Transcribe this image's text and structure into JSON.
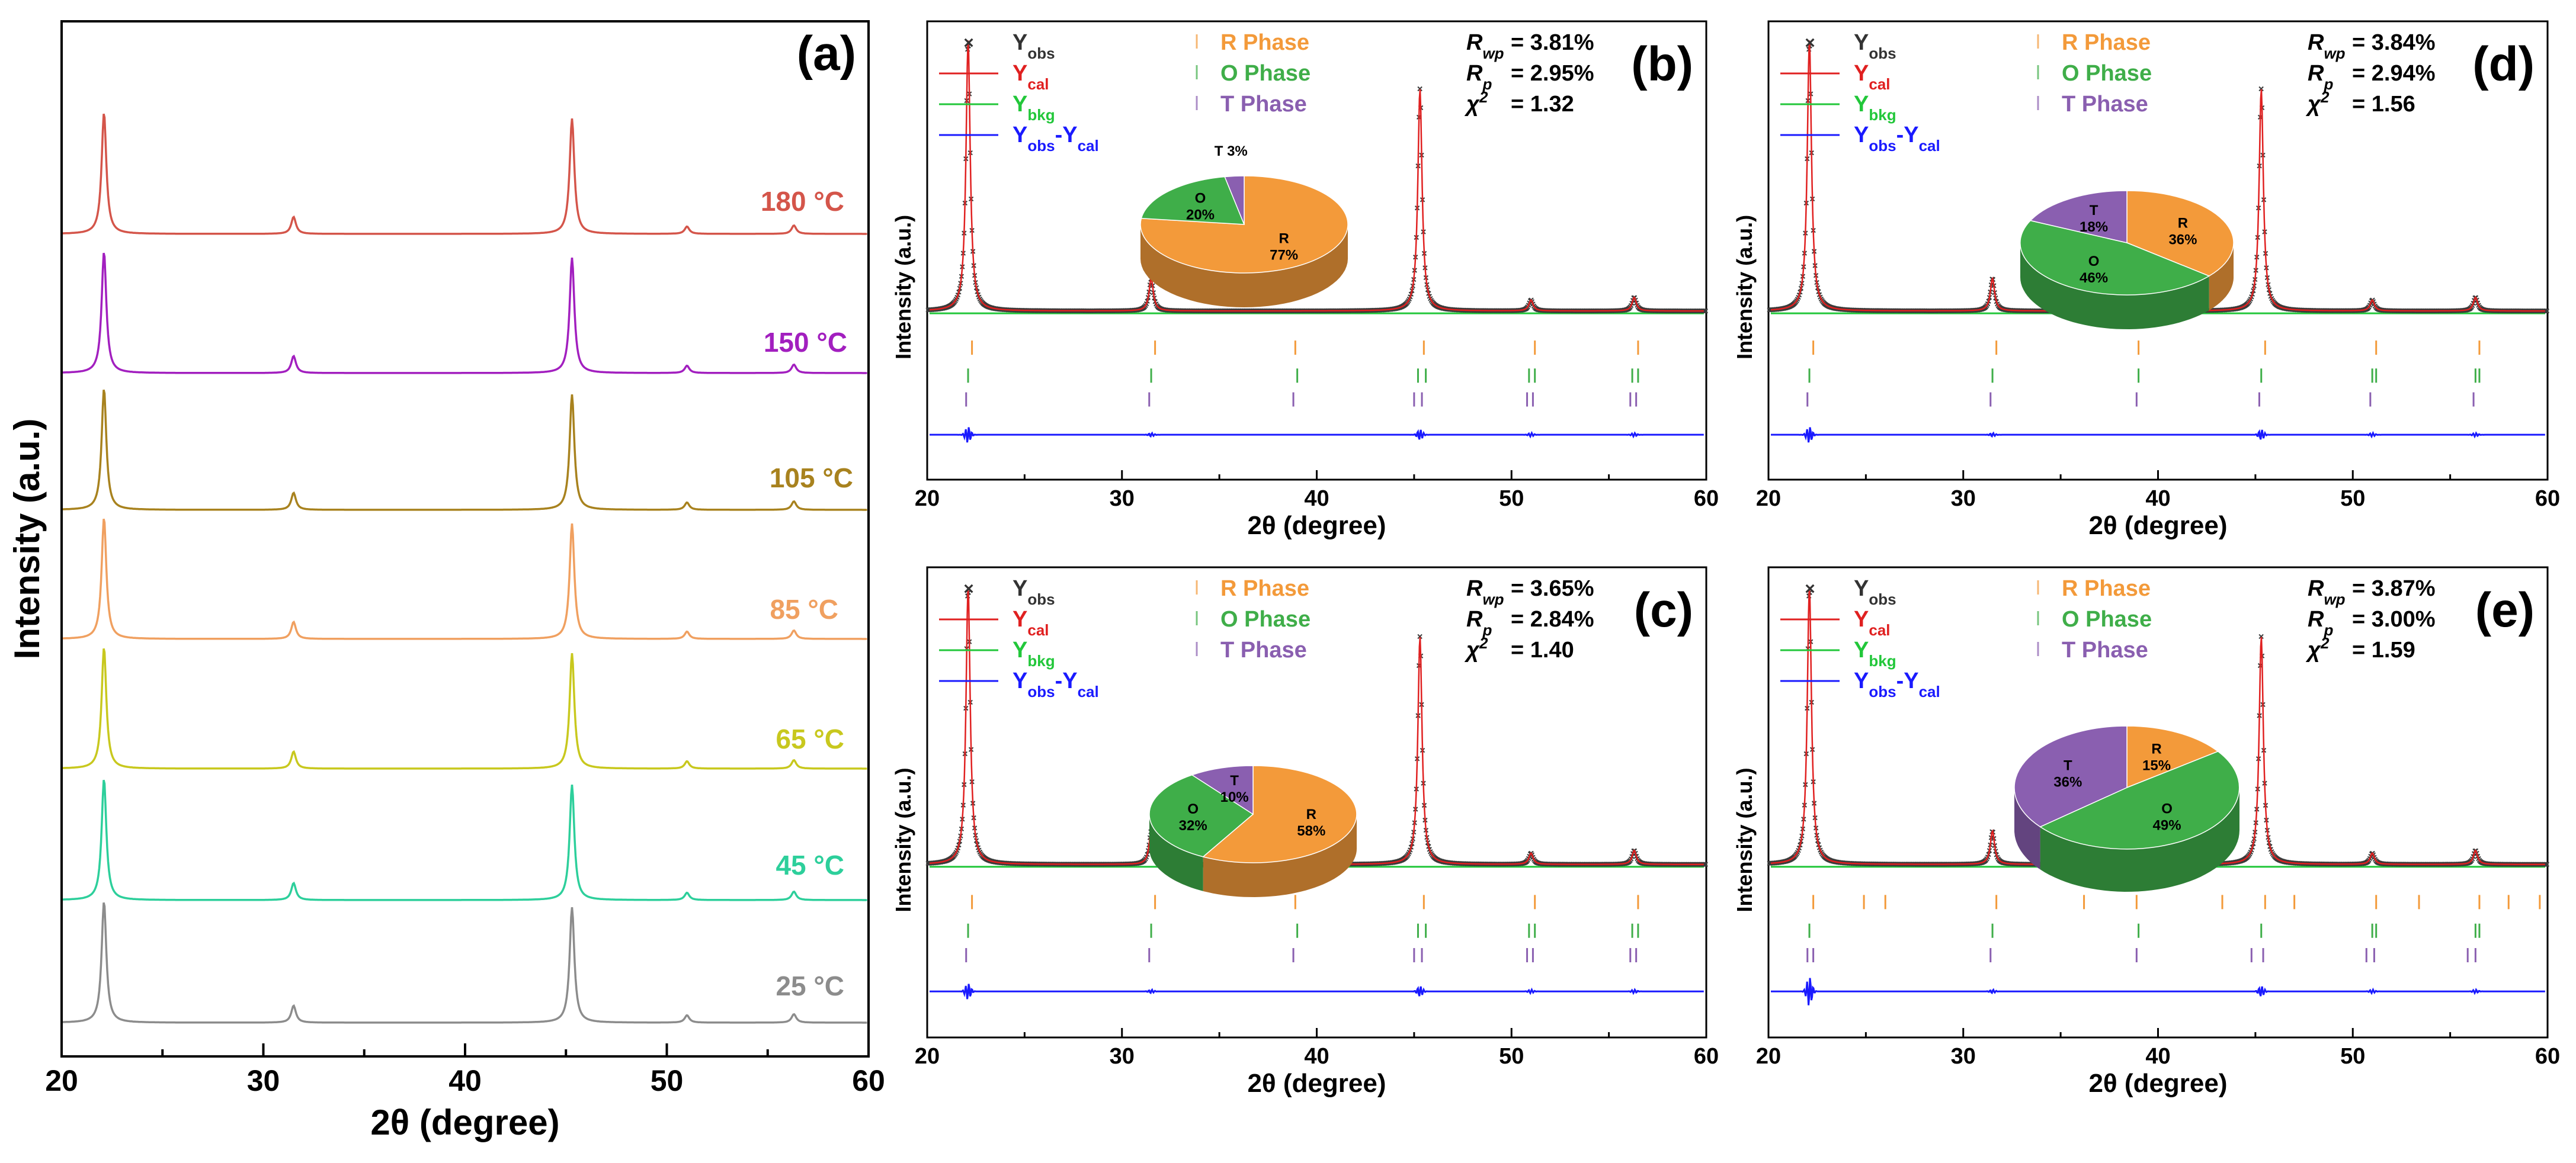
{
  "chart_data": [
    {
      "id": "a",
      "type": "line",
      "panel_label": "(a)",
      "xlabel": "2θ (degree)",
      "ylabel": "Intensity (a.u.)",
      "xlim": [
        20,
        60
      ],
      "xticks": [
        "20",
        "30",
        "40",
        "50",
        "60"
      ],
      "peak_positions": [
        22.1,
        31.5,
        45.3,
        51.0,
        56.3
      ],
      "series": [
        {
          "name": "25 °C",
          "label": "25 °C",
          "color": "#8c8c8c",
          "peak_scale": 1.0
        },
        {
          "name": "45 °C",
          "label": "45 °C",
          "color": "#2dcf9b",
          "peak_scale": 1.0
        },
        {
          "name": "65 °C",
          "label": "65 °C",
          "color": "#c8c81e",
          "peak_scale": 1.0
        },
        {
          "name": "85 °C",
          "label": "85 °C",
          "color": "#f0a060",
          "peak_scale": 1.0
        },
        {
          "name": "105 °C",
          "label": "105 °C",
          "color": "#a8821e",
          "peak_scale": 1.0
        },
        {
          "name": "150 °C",
          "label": "150 °C",
          "color": "#a21fbf",
          "peak_scale": 1.0
        },
        {
          "name": "180 °C",
          "label": "180 °C",
          "color": "#d4554a",
          "peak_scale": 1.0
        }
      ]
    },
    {
      "id": "b",
      "type": "line",
      "panel_label": "(b)",
      "xlabel": "2θ (degree)",
      "ylabel": "Intensity (a.u.)",
      "xlim": [
        20,
        60
      ],
      "xticks": [
        "20",
        "30",
        "40",
        "50",
        "60"
      ],
      "legend": [
        {
          "marker": "×",
          "main": "Y",
          "sub": "obs",
          "color": "#333333"
        },
        {
          "main": "Y",
          "sub": "cal",
          "color": "#e02020"
        },
        {
          "main": "Y",
          "sub": "bkg",
          "color": "#22c73a"
        },
        {
          "main": "Y",
          "sub": "obs",
          "mid": "-Y",
          "sub2": "cal",
          "color": "#1a1aff"
        }
      ],
      "phase_legend": [
        {
          "label": "R Phase",
          "color": "#f39a3a"
        },
        {
          "label": "O Phase",
          "color": "#3fae49"
        },
        {
          "label": "T Phase",
          "color": "#8a5fb0"
        }
      ],
      "stats": {
        "rwp": "3.81%",
        "rp": "2.95%",
        "chi2": "1.32"
      },
      "stat_labels": {
        "rwp_main": "R",
        "rwp_sub": "wp",
        "rp_main": "R",
        "rp_sub": "p",
        "chi_main": "χ",
        "chi_sup": "2"
      },
      "pie": [
        {
          "phase": "R",
          "label": "R",
          "value": 77,
          "pct": "77%",
          "color": "#f39a3a"
        },
        {
          "phase": "O",
          "label": "O",
          "value": 20,
          "pct": "20%",
          "color": "#3fae49"
        },
        {
          "phase": "T",
          "label": "T",
          "value": 3,
          "pct": "3%",
          "color": "#8a5fb0"
        }
      ],
      "peaks": [
        22.1,
        31.5,
        45.3,
        51.0,
        56.3
      ],
      "tick_marks": {
        "R": [
          22.3,
          31.7,
          38.9,
          45.5,
          51.2,
          56.5
        ],
        "O": [
          22.1,
          31.5,
          39.0,
          45.2,
          45.6,
          50.9,
          51.2,
          56.2,
          56.5
        ],
        "T": [
          22.0,
          31.4,
          38.8,
          45.0,
          45.4,
          50.8,
          51.1,
          56.1,
          56.4
        ]
      }
    },
    {
      "id": "c",
      "type": "line",
      "panel_label": "(c)",
      "xlabel": "2θ (degree)",
      "ylabel": "Intensity (a.u.)",
      "xlim": [
        20,
        60
      ],
      "xticks": [
        "20",
        "30",
        "40",
        "50",
        "60"
      ],
      "legend": [
        {
          "marker": "×",
          "main": "Y",
          "sub": "obs",
          "color": "#333333"
        },
        {
          "main": "Y",
          "sub": "cal",
          "color": "#e02020"
        },
        {
          "main": "Y",
          "sub": "bkg",
          "color": "#22c73a"
        },
        {
          "main": "Y",
          "sub": "obs",
          "mid": "-Y",
          "sub2": "cal",
          "color": "#1a1aff"
        }
      ],
      "phase_legend": [
        {
          "label": "R Phase",
          "color": "#f39a3a"
        },
        {
          "label": "O Phase",
          "color": "#3fae49"
        },
        {
          "label": "T Phase",
          "color": "#8a5fb0"
        }
      ],
      "stats": {
        "rwp": "3.65%",
        "rp": "2.84%",
        "chi2": "1.40"
      },
      "stat_labels": {
        "rwp_main": "R",
        "rwp_sub": "wp",
        "rp_main": "R",
        "rp_sub": "p",
        "chi_main": "χ",
        "chi_sup": "2"
      },
      "pie": [
        {
          "phase": "R",
          "label": "R",
          "value": 58,
          "pct": "58%",
          "color": "#f39a3a"
        },
        {
          "phase": "O",
          "label": "O",
          "value": 32,
          "pct": "32%",
          "color": "#3fae49"
        },
        {
          "phase": "T",
          "label": "T",
          "value": 10,
          "pct": "10%",
          "color": "#8a5fb0"
        }
      ],
      "peaks": [
        22.1,
        31.5,
        45.3,
        51.0,
        56.3
      ],
      "tick_marks": {
        "R": [
          22.3,
          31.7,
          38.9,
          45.5,
          51.2,
          56.5
        ],
        "O": [
          22.1,
          31.5,
          39.0,
          45.2,
          45.6,
          50.9,
          51.2,
          56.2,
          56.5
        ],
        "T": [
          22.0,
          31.4,
          38.8,
          45.0,
          45.4,
          50.8,
          51.1,
          56.1,
          56.4
        ]
      }
    },
    {
      "id": "d",
      "type": "line",
      "panel_label": "(d)",
      "xlabel": "2θ (degree)",
      "ylabel": "Intensity (a.u.)",
      "xlim": [
        20,
        60
      ],
      "xticks": [
        "20",
        "30",
        "40",
        "50",
        "60"
      ],
      "legend": [
        {
          "marker": "×",
          "main": "Y",
          "sub": "obs",
          "color": "#333333"
        },
        {
          "main": "Y",
          "sub": "cal",
          "color": "#e02020"
        },
        {
          "main": "Y",
          "sub": "bkg",
          "color": "#22c73a"
        },
        {
          "main": "Y",
          "sub": "obs",
          "mid": "-Y",
          "sub2": "cal",
          "color": "#1a1aff"
        }
      ],
      "phase_legend": [
        {
          "label": "R Phase",
          "color": "#f39a3a"
        },
        {
          "label": "O Phase",
          "color": "#3fae49"
        },
        {
          "label": "T Phase",
          "color": "#8a5fb0"
        }
      ],
      "stats": {
        "rwp": "3.84%",
        "rp": "2.94%",
        "chi2": "1.56"
      },
      "stat_labels": {
        "rwp_main": "R",
        "rwp_sub": "wp",
        "rp_main": "R",
        "rp_sub": "p",
        "chi_main": "χ",
        "chi_sup": "2"
      },
      "pie": [
        {
          "phase": "R",
          "label": "R",
          "value": 36,
          "pct": "36%",
          "color": "#f39a3a"
        },
        {
          "phase": "O",
          "label": "O",
          "value": 46,
          "pct": "46%",
          "color": "#3fae49"
        },
        {
          "phase": "T",
          "label": "T",
          "value": 18,
          "pct": "18%",
          "color": "#8a5fb0"
        }
      ],
      "peaks": [
        22.1,
        31.5,
        45.3,
        51.0,
        56.3
      ],
      "tick_marks": {
        "R": [
          22.3,
          31.7,
          39.0,
          45.5,
          51.2,
          56.5
        ],
        "O": [
          22.1,
          31.5,
          39.0,
          45.3,
          51.0,
          51.2,
          56.3,
          56.5
        ],
        "T": [
          22.0,
          31.4,
          38.9,
          45.2,
          50.9,
          56.2
        ]
      }
    },
    {
      "id": "e",
      "type": "line",
      "panel_label": "(e)",
      "xlabel": "2θ (degree)",
      "ylabel": "Intensity (a.u.)",
      "xlim": [
        20,
        60
      ],
      "xticks": [
        "20",
        "30",
        "40",
        "50",
        "60"
      ],
      "legend": [
        {
          "marker": "×",
          "main": "Y",
          "sub": "obs",
          "color": "#333333"
        },
        {
          "main": "Y",
          "sub": "cal",
          "color": "#e02020"
        },
        {
          "main": "Y",
          "sub": "bkg",
          "color": "#22c73a"
        },
        {
          "main": "Y",
          "sub": "obs",
          "mid": "-Y",
          "sub2": "cal",
          "color": "#1a1aff"
        }
      ],
      "phase_legend": [
        {
          "label": "R Phase",
          "color": "#f39a3a"
        },
        {
          "label": "O Phase",
          "color": "#3fae49"
        },
        {
          "label": "T Phase",
          "color": "#8a5fb0"
        }
      ],
      "stats": {
        "rwp": "3.87%",
        "rp": "3.00%",
        "chi2": "1.59"
      },
      "stat_labels": {
        "rwp_main": "R",
        "rwp_sub": "wp",
        "rp_main": "R",
        "rp_sub": "p",
        "chi_main": "χ",
        "chi_sup": "2"
      },
      "pie": [
        {
          "phase": "R",
          "label": "R",
          "value": 15,
          "pct": "15%",
          "color": "#f39a3a"
        },
        {
          "phase": "O",
          "label": "O",
          "value": 49,
          "pct": "49%",
          "color": "#3fae49"
        },
        {
          "phase": "T",
          "label": "T",
          "value": 36,
          "pct": "36%",
          "color": "#8a5fb0"
        }
      ],
      "peaks": [
        22.1,
        31.5,
        45.3,
        51.0,
        56.3
      ],
      "tick_marks": {
        "R": [
          22.3,
          24.9,
          26.0,
          31.7,
          36.2,
          38.9,
          43.3,
          45.5,
          47.0,
          51.2,
          53.4,
          56.5,
          58.0,
          59.6
        ],
        "O": [
          22.1,
          31.5,
          39.0,
          45.3,
          51.0,
          51.2,
          56.3,
          56.5
        ],
        "T": [
          22.0,
          22.3,
          31.4,
          38.9,
          44.8,
          45.4,
          50.7,
          51.1,
          55.9,
          56.3
        ]
      }
    }
  ]
}
